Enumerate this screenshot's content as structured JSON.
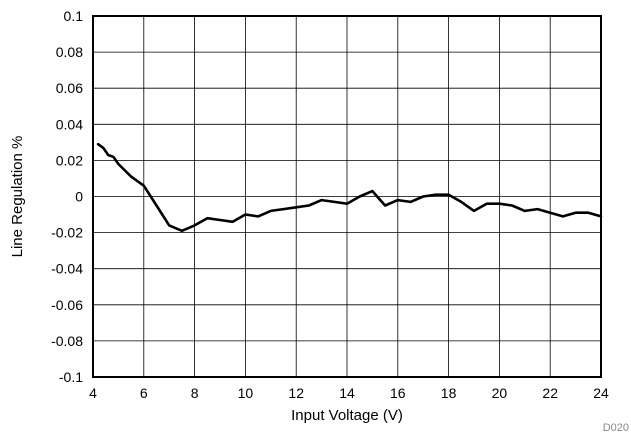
{
  "chart_data": {
    "type": "line",
    "xlabel": "Input Voltage (V)",
    "ylabel": "Line Regulation %",
    "xlim": [
      4,
      24
    ],
    "ylim": [
      -0.1,
      0.1
    ],
    "xticks": [
      "4",
      "6",
      "8",
      "10",
      "12",
      "14",
      "16",
      "18",
      "20",
      "22",
      "24"
    ],
    "yticks": [
      "0.1",
      "0.08",
      "0.06",
      "0.04",
      "0.02",
      "0",
      "-0.02",
      "-0.04",
      "-0.06",
      "-0.08",
      "-0.1"
    ],
    "grid": true,
    "figure_id": "D020",
    "series": [
      {
        "x": [
          4.2,
          4.4,
          4.6,
          4.8,
          5.0,
          5.5,
          6.0,
          6.5,
          7.0,
          7.5,
          8.0,
          8.5,
          9.0,
          9.5,
          10.0,
          10.5,
          11.0,
          11.5,
          12.0,
          12.5,
          13.0,
          13.5,
          14.0,
          14.5,
          15.0,
          15.5,
          16.0,
          16.5,
          17.0,
          17.5,
          18.0,
          18.5,
          19.0,
          19.5,
          20.0,
          20.5,
          21.0,
          21.5,
          22.0,
          22.5,
          23.0,
          23.5,
          24.0
        ],
        "y": [
          0.029,
          0.027,
          0.023,
          0.022,
          0.018,
          0.011,
          0.006,
          -0.005,
          -0.016,
          -0.019,
          -0.016,
          -0.012,
          -0.013,
          -0.014,
          -0.01,
          -0.011,
          -0.008,
          -0.007,
          -0.006,
          -0.005,
          -0.002,
          -0.003,
          -0.004,
          0.0,
          0.003,
          -0.005,
          -0.002,
          -0.003,
          0.0,
          0.001,
          0.001,
          -0.003,
          -0.008,
          -0.004,
          -0.004,
          -0.005,
          -0.008,
          -0.007,
          -0.009,
          -0.011,
          -0.009,
          -0.009,
          -0.011
        ],
        "color": "#000000"
      }
    ]
  }
}
